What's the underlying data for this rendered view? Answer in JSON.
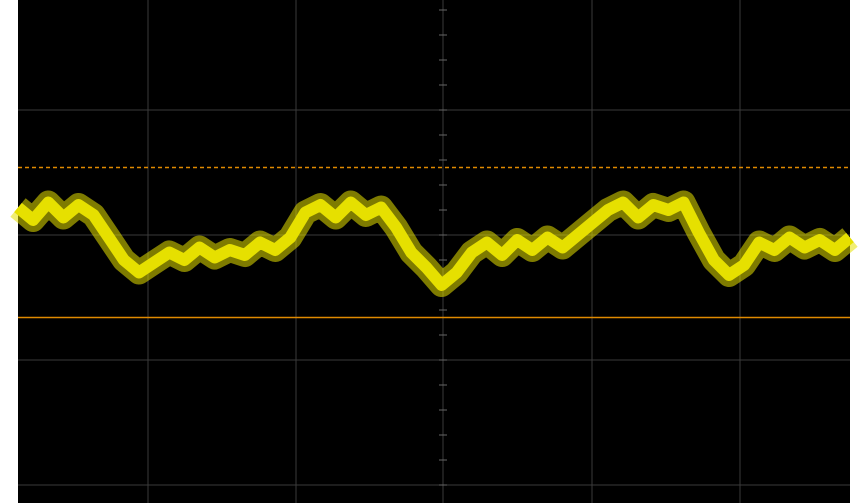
{
  "waveform": {
    "color": "#e6e000",
    "values": [
      0.22,
      0.12,
      0.26,
      0.14,
      0.24,
      0.16,
      -0.02,
      -0.2,
      -0.3,
      -0.22,
      -0.14,
      -0.2,
      -0.1,
      -0.18,
      -0.12,
      -0.16,
      -0.06,
      -0.12,
      -0.02,
      0.18,
      0.24,
      0.14,
      0.26,
      0.16,
      0.22,
      0.06,
      -0.14,
      -0.26,
      -0.4,
      -0.3,
      -0.14,
      -0.06,
      -0.16,
      -0.04,
      -0.12,
      -0.02,
      -0.1,
      0.0,
      0.1,
      0.2,
      0.26,
      0.14,
      0.24,
      0.2,
      0.26,
      0.02,
      -0.2,
      -0.32,
      -0.24,
      -0.06,
      -0.12,
      -0.02,
      -0.1,
      -0.04,
      -0.12,
      -0.02
    ]
  },
  "cursors": [
    {
      "level": 0.54,
      "color": "#e08a00",
      "style": "dashed"
    },
    {
      "level": -0.66,
      "color": "#e08a00",
      "style": "solid"
    }
  ]
}
